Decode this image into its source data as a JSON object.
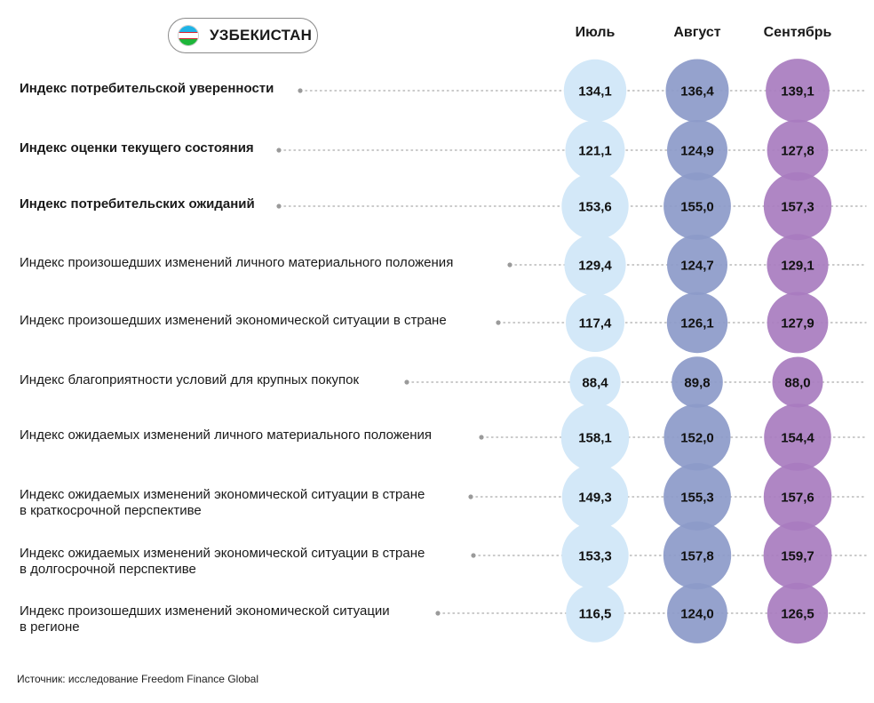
{
  "header": {
    "country": "УЗБЕКИСТАН",
    "flag_icon": "uzbekistan-flag-icon"
  },
  "colors": {
    "july": "#d3e8f8",
    "august": "#8c9ac9",
    "september": "#a87cbf",
    "leader": "#b8b8b8",
    "dot": "#9a9a9a"
  },
  "chart_data": {
    "type": "table",
    "categories": [
      "Индекс потребительской уверенности",
      "Индекс оценки текущего состояния",
      "Индекс потребительских ожиданий",
      "Индекс произошедших изменений личного материального положения",
      "Индекс произошедших изменений экономической ситуации в стране",
      "Индекс благоприятности условий для крупных покупок",
      "Индекс ожидаемых изменений личного материального положения",
      "Индекс ожидаемых изменений экономической ситуации в стране в краткосрочной перспективе",
      "Индекс ожидаемых изменений экономической ситуации в стране в долгосрочной перспективе",
      "Индекс произошедших изменений экономической ситуации в регионе"
    ],
    "series": [
      {
        "name": "Июль",
        "values": [
          134.1,
          121.1,
          153.6,
          129.4,
          117.4,
          88.4,
          158.1,
          149.3,
          153.3,
          116.5
        ],
        "labels": [
          "134,1",
          "121,1",
          "153,6",
          "129,4",
          "117,4",
          "88,4",
          "158,1",
          "149,3",
          "153,3",
          "116,5"
        ]
      },
      {
        "name": "Август",
        "values": [
          136.4,
          124.9,
          155.0,
          124.7,
          126.1,
          89.8,
          152.0,
          155.3,
          157.8,
          124.0
        ],
        "labels": [
          "136,4",
          "124,9",
          "155,0",
          "124,7",
          "126,1",
          "89,8",
          "152,0",
          "155,3",
          "157,8",
          "124,0"
        ]
      },
      {
        "name": "Сентябрь",
        "values": [
          139.1,
          127.8,
          157.3,
          129.1,
          127.9,
          88.0,
          154.4,
          157.6,
          159.7,
          126.5
        ],
        "labels": [
          "139,1",
          "127,8",
          "157,3",
          "129,1",
          "127,9",
          "88,0",
          "154,4",
          "157,6",
          "159,7",
          "126,5"
        ]
      }
    ],
    "rows": [
      {
        "lines": [
          "Индекс потребительской уверенности"
        ],
        "bold": true
      },
      {
        "lines": [
          "Индекс оценки текущего состояния"
        ],
        "bold": true
      },
      {
        "lines": [
          "Индекс потребительских ожиданий"
        ],
        "bold": true
      },
      {
        "lines": [
          "Индекс произошедших изменений личного материального положения"
        ],
        "bold": false
      },
      {
        "lines": [
          "Индекс произошедших изменений экономической ситуации в стране"
        ],
        "bold": false
      },
      {
        "lines": [
          "Индекс благоприятности условий для крупных покупок"
        ],
        "bold": false
      },
      {
        "lines": [
          "Индекс ожидаемых изменений личного материального положения"
        ],
        "bold": false
      },
      {
        "lines": [
          "Индекс ожидаемых изменений экономической ситуации в стране",
          "в краткосрочной перспективе"
        ],
        "bold": false
      },
      {
        "lines": [
          "Индекс ожидаемых изменений экономической ситуации в стране",
          "в долгосрочной перспективе"
        ],
        "bold": false
      },
      {
        "lines": [
          "Индекс произошедших изменений экономической ситуации",
          "в регионе"
        ],
        "bold": false
      }
    ]
  },
  "footer": {
    "source": "Источник: исследование Freedom Finance Global"
  }
}
